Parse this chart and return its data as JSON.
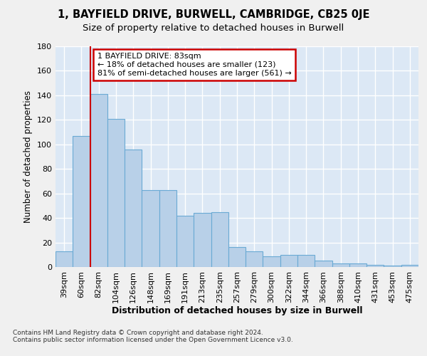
{
  "title1": "1, BAYFIELD DRIVE, BURWELL, CAMBRIDGE, CB25 0JE",
  "title2": "Size of property relative to detached houses in Burwell",
  "xlabel": "Distribution of detached houses by size in Burwell",
  "ylabel": "Number of detached properties",
  "footnote": "Contains HM Land Registry data © Crown copyright and database right 2024.\nContains public sector information licensed under the Open Government Licence v3.0.",
  "categories": [
    "39sqm",
    "60sqm",
    "82sqm",
    "104sqm",
    "126sqm",
    "148sqm",
    "169sqm",
    "191sqm",
    "213sqm",
    "235sqm",
    "257sqm",
    "279sqm",
    "300sqm",
    "322sqm",
    "344sqm",
    "366sqm",
    "388sqm",
    "410sqm",
    "431sqm",
    "453sqm",
    "475sqm"
  ],
  "values": [
    13,
    107,
    141,
    121,
    96,
    63,
    63,
    42,
    44,
    45,
    16,
    13,
    9,
    10,
    10,
    5,
    3,
    3,
    2,
    1,
    2
  ],
  "bar_color": "#b8d0e8",
  "bar_edge_color": "#6aaad4",
  "vline_x": 1.5,
  "vline_color": "#cc0000",
  "annotation_text": "1 BAYFIELD DRIVE: 83sqm\n← 18% of detached houses are smaller (123)\n81% of semi-detached houses are larger (561) →",
  "annotation_box_color": "#ffffff",
  "annotation_box_edge": "#cc0000",
  "ylim": [
    0,
    180
  ],
  "yticks": [
    0,
    20,
    40,
    60,
    80,
    100,
    120,
    140,
    160,
    180
  ],
  "bg_color": "#dce8f5",
  "fig_color": "#f0f0f0",
  "grid_color": "#ffffff",
  "title1_fontsize": 10.5,
  "title2_fontsize": 9.5,
  "xlabel_fontsize": 9,
  "ylabel_fontsize": 8.5,
  "tick_fontsize": 8,
  "annot_fontsize": 8,
  "footnote_fontsize": 6.5
}
